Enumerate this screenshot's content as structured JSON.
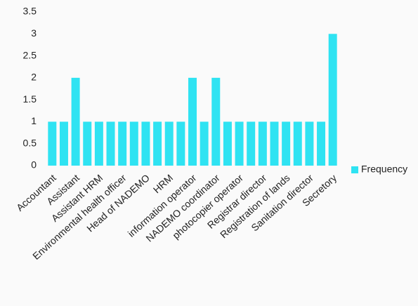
{
  "chart_data": {
    "type": "bar",
    "categories": [
      "Accountant",
      null,
      "Assistant",
      null,
      "Assistant HRM",
      null,
      "Environmental health officer",
      null,
      "Head of NADEMO",
      null,
      "HRM",
      null,
      "information operator",
      null,
      "NADEMO coordinator",
      null,
      "photocopier operator",
      null,
      "Registrar director",
      null,
      "Registration of lands",
      null,
      "Sanitation director",
      null,
      "Secretory"
    ],
    "series": [
      {
        "name": "Frequency",
        "color": "#2fe3f2",
        "values": [
          1,
          1,
          2,
          1,
          1,
          1,
          1,
          1,
          1,
          1,
          1,
          1,
          2,
          1,
          2,
          1,
          1,
          1,
          1,
          1,
          1,
          1,
          1,
          1,
          3
        ]
      }
    ],
    "ylim": [
      0,
      3.5
    ],
    "yticks": [
      0,
      0.5,
      1,
      1.5,
      2,
      2.5,
      3,
      3.5
    ],
    "grid": false,
    "legend": "right"
  }
}
